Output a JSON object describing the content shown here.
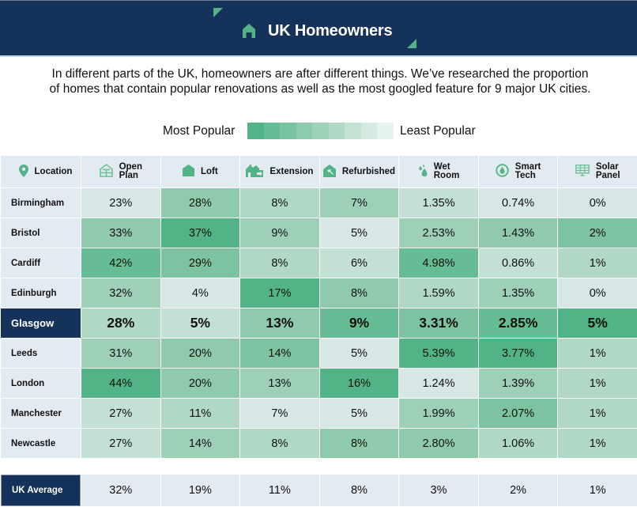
{
  "header": {
    "title": "UK Homeowners",
    "icon": "house-icon",
    "background": "#15325b",
    "accent": "#52b486"
  },
  "intro": "In different parts of the UK, homeowners are after different things. We’ve researched the proportion of homes that contain popular renovations as well as the most googled feature for 9 major UK cities.",
  "legend": {
    "most_label": "Most Popular",
    "least_label": "Least Popular",
    "scale": [
      "#52b486",
      "#66bc94",
      "#79c49f",
      "#8ccbab",
      "#9dd1b8",
      "#b0dac6",
      "#c3e2d4",
      "#d5ebe2",
      "#e6f3ee"
    ]
  },
  "chart_data": {
    "type": "heatmap",
    "title": "UK Homeowners",
    "subtitle": "Proportion of homes that contain popular renovations and the most googled feature for 9 major UK cities",
    "legend": [
      "Most Popular",
      "Least Popular"
    ],
    "columns": [
      {
        "label": "Location",
        "icon": "location-pin-icon"
      },
      {
        "label": "Open\nPlan",
        "icon": "open-plan-icon"
      },
      {
        "label": "Loft",
        "icon": "loft-icon"
      },
      {
        "label": "Extension",
        "icon": "extension-icon"
      },
      {
        "label": "Refurbished",
        "icon": "refurbished-icon"
      },
      {
        "label": "Wet\nRoom",
        "icon": "wet-room-icon"
      },
      {
        "label": "Smart\nTech",
        "icon": "smart-tech-icon"
      },
      {
        "label": "Solar\nPanel",
        "icon": "solar-panel-icon"
      }
    ],
    "rows": [
      {
        "city": "Birmingham",
        "values": [
          "23%",
          "28%",
          "8%",
          "7%",
          "1.35%",
          "0.74%",
          "0%"
        ],
        "shade": [
          8,
          4,
          6,
          5,
          7,
          8,
          8
        ]
      },
      {
        "city": "Bristol",
        "values": [
          "33%",
          "37%",
          "9%",
          "5%",
          "2.53%",
          "1.43%",
          "2%"
        ],
        "shade": [
          4,
          1,
          5,
          8,
          5,
          4,
          3
        ]
      },
      {
        "city": "Cardiff",
        "values": [
          "42%",
          "29%",
          "8%",
          "6%",
          "4.98%",
          "0.86%",
          "1%"
        ],
        "shade": [
          2,
          3,
          6,
          7,
          2,
          7,
          6
        ]
      },
      {
        "city": "Edinburgh",
        "values": [
          "32%",
          "4%",
          "17%",
          "8%",
          "1.59%",
          "1.35%",
          "0%"
        ],
        "shade": [
          5,
          8,
          1,
          4,
          6,
          5,
          8
        ]
      },
      {
        "city": "Glasgow",
        "values": [
          "28%",
          "5%",
          "13%",
          "9%",
          "3.31%",
          "2.85%",
          "5%"
        ],
        "shade": [
          6,
          7,
          4,
          2,
          3,
          2,
          1
        ],
        "highlight": true
      },
      {
        "city": "Leeds",
        "values": [
          "31%",
          "20%",
          "14%",
          "5%",
          "5.39%",
          "3.77%",
          "1%"
        ],
        "shade": [
          5,
          4,
          3,
          8,
          1,
          1,
          6
        ]
      },
      {
        "city": "London",
        "values": [
          "44%",
          "20%",
          "13%",
          "16%",
          "1.24%",
          "1.39%",
          "1%"
        ],
        "shade": [
          1,
          4,
          5,
          1,
          8,
          5,
          6
        ]
      },
      {
        "city": "Manchester",
        "values": [
          "27%",
          "11%",
          "7%",
          "5%",
          "1.99%",
          "2.07%",
          "1%"
        ],
        "shade": [
          7,
          6,
          8,
          8,
          5,
          3,
          6
        ]
      },
      {
        "city": "Newcastle",
        "values": [
          "27%",
          "14%",
          "8%",
          "8%",
          "2.80%",
          "1.06%",
          "1%"
        ],
        "shade": [
          7,
          5,
          6,
          4,
          4,
          6,
          6
        ]
      }
    ],
    "average": {
      "city": "UK Average",
      "values": [
        "32%",
        "19%",
        "11%",
        "8%",
        "3%",
        "2%",
        "1%"
      ]
    }
  }
}
